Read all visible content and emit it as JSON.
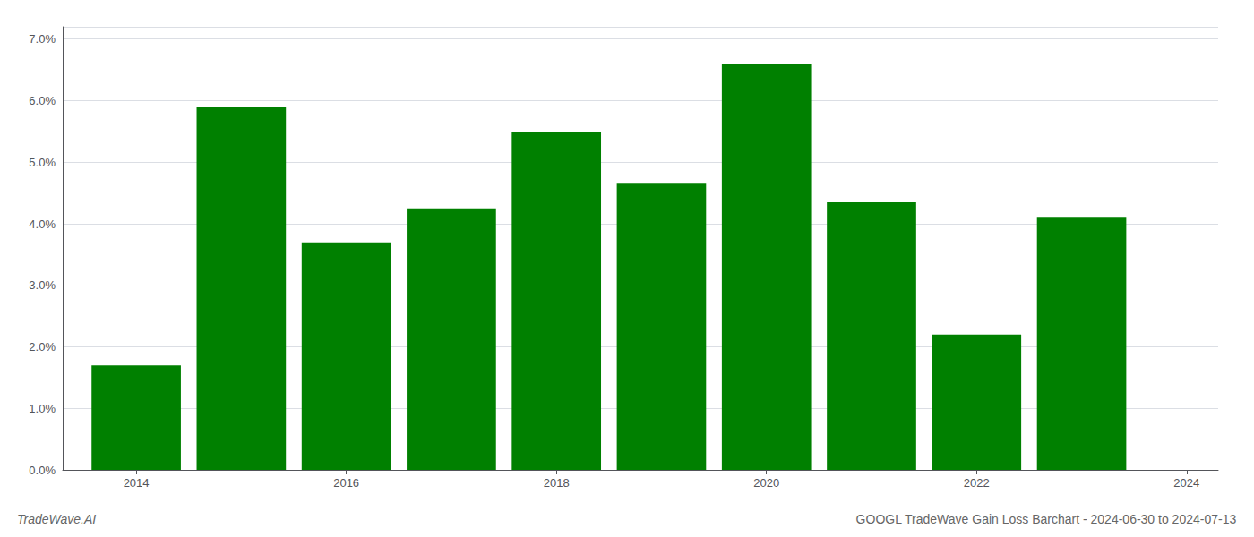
{
  "chart_data": {
    "type": "bar",
    "title": "GOOGL TradeWave Gain Loss Barchart - 2024-06-30 to 2024-07-13",
    "annotations": [
      "TradeWave.AI"
    ],
    "x": [
      2014,
      2015,
      2016,
      2017,
      2018,
      2019,
      2020,
      2021,
      2022,
      2023
    ],
    "values": [
      0.017,
      0.059,
      0.037,
      0.0425,
      0.055,
      0.0465,
      0.066,
      0.0435,
      0.022,
      0.041
    ],
    "color": "#008000",
    "xlim": [
      2013.3,
      2024.3
    ],
    "xticks": [
      2014,
      2016,
      2018,
      2020,
      2022,
      2024
    ],
    "ylim": [
      0,
      0.072
    ],
    "yticks": [
      {
        "value": 0.0,
        "label": "0.0%"
      },
      {
        "value": 0.01,
        "label": "1.0%"
      },
      {
        "value": 0.02,
        "label": "2.0%"
      },
      {
        "value": 0.03,
        "label": "3.0%"
      },
      {
        "value": 0.04,
        "label": "4.0%"
      },
      {
        "value": 0.05,
        "label": "5.0%"
      },
      {
        "value": 0.06,
        "label": "6.0%"
      },
      {
        "value": 0.07,
        "label": "7.0%"
      }
    ],
    "grid": true
  }
}
